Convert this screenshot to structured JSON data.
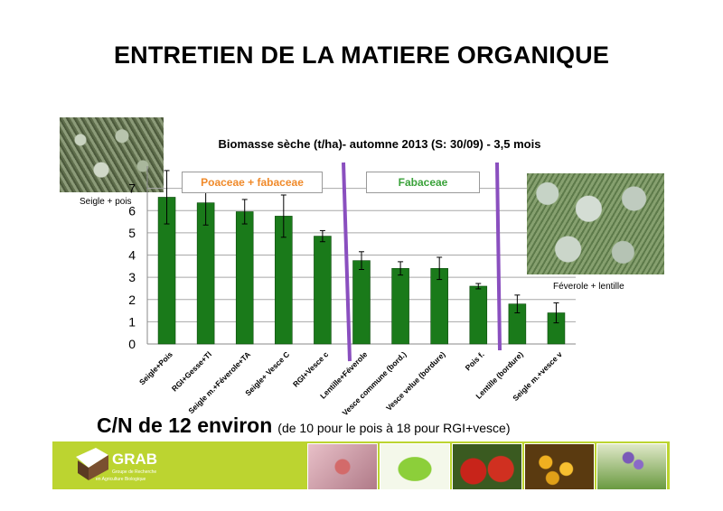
{
  "title": "ENTRETIEN DE LA MATIERE ORGANIQUE",
  "chart_data": {
    "type": "bar",
    "title": "Biomasse sèche (t/ha)- automne 2013 (S: 30/09) - 3,5 mois",
    "categories": [
      "Seigle+Pois",
      "RGI+Gesse+Tl",
      "Seigle m.+Féverole+TA",
      "Seigle+ Vesce C",
      "RGI+Vesce c",
      "Lentille+Féverole",
      "Vesce commune (bord.)",
      "Vesce velue (bordure)",
      "Pois f.",
      "Lentille (bordure)",
      "Seigle m.+vesce v"
    ],
    "values": [
      6.6,
      6.35,
      5.95,
      5.75,
      4.85,
      3.75,
      3.4,
      3.4,
      2.6,
      1.8,
      1.4
    ],
    "error": [
      1.2,
      1.0,
      0.55,
      0.95,
      0.25,
      0.4,
      0.3,
      0.5,
      0.12,
      0.4,
      0.45
    ],
    "yticks": [
      "0",
      "1",
      "2",
      "3",
      "4",
      "5",
      "6",
      "7"
    ],
    "ylim": [
      0,
      8
    ],
    "grid": true,
    "bar_color": "#1a7a1a",
    "groups": [
      {
        "label": "Poaceae + fabaceae",
        "color": "#f08a2a"
      },
      {
        "label": "Fabaceae",
        "color": "#3aa23a"
      }
    ],
    "separator_color": "#8a4fbf"
  },
  "photos": {
    "left_caption": "Seigle + pois",
    "right_caption": "Féverole + lentille"
  },
  "cn": {
    "main": "C/N de 12 environ",
    "sub": "(de 10 pour le pois à 18 pour RGI+vesce)"
  },
  "footer": {
    "logo_text": "GRAB",
    "logo_sub1": "Groupe de Recherche",
    "logo_sub2": "en Agriculture Biologique",
    "bg_color": "#bcd430"
  }
}
